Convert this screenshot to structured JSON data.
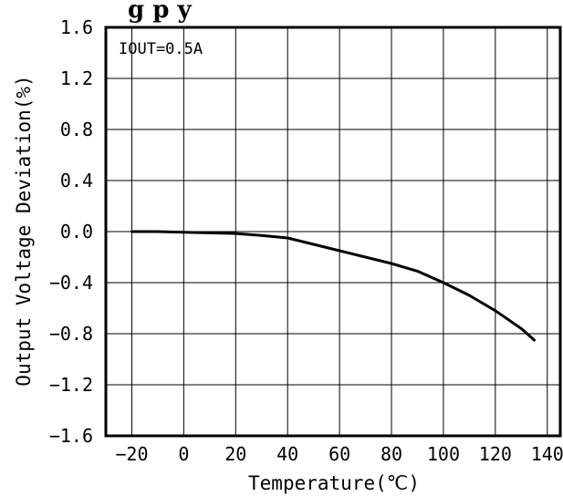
{
  "title_fragment": "g    p              y",
  "chart_data": {
    "type": "line",
    "xlabel": "Temperature(℃)",
    "ylabel": "Output  Voltage  Deviation(%)",
    "annotation": "IOUT=0.5A",
    "xlim": [
      -30,
      145
    ],
    "ylim": [
      -1.6,
      1.6
    ],
    "xticks": [
      -20,
      0,
      20,
      40,
      60,
      80,
      100,
      120,
      140
    ],
    "yticks": [
      1.6,
      1.2,
      0.8,
      0.4,
      0.0,
      -0.4,
      -0.8,
      -1.2,
      -1.6
    ],
    "xtick_labels": [
      "−20",
      "0",
      "20",
      "40",
      "60",
      "80",
      "100",
      "120",
      "140"
    ],
    "ytick_labels": [
      "1.6",
      "1.2",
      "0.8",
      "0.4",
      "0.0",
      "−0.4",
      "−0.8",
      "−1.2",
      "−1.6"
    ],
    "grid": true,
    "series": [
      {
        "x": [
          -20,
          -10,
          0,
          10,
          20,
          30,
          40,
          50,
          60,
          70,
          80,
          90,
          100,
          110,
          120,
          130,
          135
        ],
        "y": [
          0.0,
          0.0,
          -0.005,
          -0.01,
          -0.015,
          -0.03,
          -0.05,
          -0.1,
          -0.15,
          -0.2,
          -0.25,
          -0.31,
          -0.4,
          -0.5,
          -0.62,
          -0.76,
          -0.85
        ]
      }
    ]
  }
}
